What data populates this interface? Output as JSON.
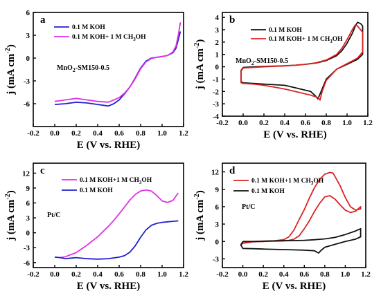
{
  "chart_data": [
    {
      "id": "a",
      "type": "line",
      "letter": "a",
      "annotation": "MnO2-SM150-0.5",
      "annotation_parts": {
        "base": "MnO",
        "sub": "2",
        "rest": "-SM150-0.5"
      },
      "xlabel": "E (V vs. RHE)",
      "ylabel": "j (mA cm⁻²)",
      "ylabel_parts": {
        "base": "j (mA cm",
        "sup": "-2",
        "end": ")"
      },
      "xlim": [
        -0.2,
        1.2
      ],
      "ylim": [
        -9,
        6
      ],
      "xticks": [
        "-0.2",
        "0.0",
        "0.2",
        "0.4",
        "0.6",
        "0.8",
        "1.0",
        "1.2"
      ],
      "yticks": [
        "-6",
        "-3",
        "0",
        "3",
        "6"
      ],
      "legend_position": "top-right",
      "series": [
        {
          "name": "0.1 M KOH",
          "color": "#1f1fcf",
          "x": [
            0.0,
            0.1,
            0.2,
            0.3,
            0.4,
            0.5,
            0.55,
            0.6,
            0.65,
            0.7,
            0.75,
            0.8,
            0.85,
            0.9,
            0.95,
            1.0,
            1.05,
            1.1,
            1.13,
            1.15,
            1.17
          ],
          "y": [
            -6.1,
            -6.0,
            -5.8,
            -5.9,
            -6.1,
            -6.3,
            -6.0,
            -5.5,
            -4.7,
            -3.8,
            -2.6,
            -1.3,
            -0.4,
            0.0,
            0.1,
            0.2,
            0.35,
            0.7,
            1.3,
            2.4,
            3.5
          ]
        },
        {
          "name": "0.1 M KOH+ 1 M CH3OH",
          "color": "#e030e6",
          "x": [
            0.0,
            0.1,
            0.2,
            0.3,
            0.4,
            0.5,
            0.55,
            0.6,
            0.65,
            0.7,
            0.75,
            0.8,
            0.85,
            0.9,
            0.95,
            1.0,
            1.05,
            1.1,
            1.13,
            1.15,
            1.17
          ],
          "y": [
            -5.7,
            -5.5,
            -5.3,
            -5.5,
            -5.7,
            -5.8,
            -5.5,
            -5.2,
            -4.6,
            -3.8,
            -2.7,
            -1.4,
            -0.5,
            -0.05,
            0.1,
            0.2,
            0.35,
            0.8,
            1.6,
            3.0,
            4.7
          ]
        }
      ]
    },
    {
      "id": "b",
      "type": "line",
      "letter": "b",
      "annotation": "MnO2-SM150-0.5",
      "annotation_parts": {
        "base": "MnO",
        "sub": "2",
        "rest": "-SM150-0.5"
      },
      "xlabel": "E (V vs. RHE)",
      "ylabel": "j (mA cm⁻²)",
      "ylabel_parts": {
        "base": "j (mA cm",
        "sup": "-2",
        "end": ")"
      },
      "xlim": [
        -0.2,
        1.2
      ],
      "ylim": [
        -4,
        4.4
      ],
      "xticks": [
        "-0.2",
        "0.0",
        "0.2",
        "0.4",
        "0.6",
        "0.8",
        "1.0",
        "1.2"
      ],
      "yticks": [
        "-4",
        "-3",
        "-2",
        "-1",
        "0",
        "1",
        "2",
        "3",
        "4"
      ],
      "legend_position": "top-left",
      "series": [
        {
          "name": "0.1 M KOH",
          "color": "#111111",
          "x": [
            0.0,
            0.1,
            0.2,
            0.3,
            0.4,
            0.5,
            0.6,
            0.7,
            0.8,
            0.9,
            0.95,
            1.0,
            1.05,
            1.08,
            1.1,
            1.13,
            1.15,
            1.15,
            1.1,
            1.0,
            0.9,
            0.8,
            0.75,
            0.72,
            0.7,
            0.65,
            0.6,
            0.5,
            0.4,
            0.3,
            0.2,
            0.1,
            0.0,
            -0.02,
            -0.02,
            0.0
          ],
          "y": [
            -0.05,
            0.0,
            0.03,
            0.05,
            0.08,
            0.12,
            0.2,
            0.3,
            0.5,
            0.9,
            1.3,
            1.9,
            2.7,
            3.3,
            3.6,
            3.5,
            3.3,
            1.0,
            0.6,
            0.2,
            -0.2,
            -1.0,
            -2.0,
            -2.6,
            -2.4,
            -2.0,
            -1.9,
            -1.7,
            -1.5,
            -1.45,
            -1.4,
            -1.35,
            -1.3,
            -1.2,
            -0.3,
            -0.05
          ]
        },
        {
          "name": "0.1 M KOH+ 1 M CH3OH",
          "color": "#dd2222",
          "x": [
            0.0,
            0.1,
            0.2,
            0.3,
            0.4,
            0.5,
            0.6,
            0.7,
            0.8,
            0.9,
            0.95,
            1.0,
            1.05,
            1.08,
            1.1,
            1.13,
            1.15,
            1.15,
            1.1,
            1.0,
            0.9,
            0.8,
            0.76,
            0.74,
            0.72,
            0.65,
            0.6,
            0.5,
            0.4,
            0.3,
            0.2,
            0.1,
            0.0,
            -0.02,
            -0.02,
            0.0
          ],
          "y": [
            -0.1,
            -0.05,
            0.0,
            0.03,
            0.07,
            0.12,
            0.2,
            0.32,
            0.55,
            1.0,
            1.5,
            2.2,
            3.0,
            3.4,
            3.3,
            3.0,
            2.8,
            1.2,
            0.7,
            0.25,
            -0.2,
            -1.1,
            -2.0,
            -2.7,
            -2.5,
            -2.3,
            -2.2,
            -2.0,
            -1.8,
            -1.65,
            -1.5,
            -1.4,
            -1.35,
            -1.3,
            -0.35,
            -0.1
          ]
        }
      ]
    },
    {
      "id": "c",
      "type": "line",
      "letter": "c",
      "annotation": "Pt/C",
      "xlabel": "E (V vs. RHE)",
      "ylabel": "j (mA cm⁻²)",
      "ylabel_parts": {
        "base": "j (mA cm",
        "sup": "-2",
        "end": ")"
      },
      "xlim": [
        -0.2,
        1.2
      ],
      "ylim": [
        -7,
        14
      ],
      "xticks": [
        "-0.2",
        "0.0",
        "0.2",
        "0.4",
        "0.6",
        "0.8",
        "1.0",
        "1.2"
      ],
      "yticks": [
        "-6",
        "-3",
        "0",
        "3",
        "6",
        "9",
        "12"
      ],
      "legend_position": "top-left",
      "series": [
        {
          "name": "0.1 M KOH+1 M CH3OH",
          "color": "#e030e6",
          "x": [
            0.0,
            0.05,
            0.1,
            0.2,
            0.3,
            0.4,
            0.5,
            0.55,
            0.6,
            0.65,
            0.7,
            0.75,
            0.8,
            0.85,
            0.9,
            0.95,
            1.0,
            1.05,
            1.1,
            1.13,
            1.15
          ],
          "y": [
            -4.9,
            -5.0,
            -4.8,
            -4.0,
            -2.5,
            -0.8,
            1.3,
            2.5,
            3.8,
            5.2,
            6.6,
            7.7,
            8.4,
            8.6,
            8.4,
            7.5,
            6.4,
            6.1,
            6.5,
            7.4,
            8.0
          ]
        },
        {
          "name": "0.1 M KOH",
          "color": "#1f1fcf",
          "x": [
            0.0,
            0.05,
            0.1,
            0.15,
            0.2,
            0.3,
            0.4,
            0.5,
            0.6,
            0.65,
            0.7,
            0.75,
            0.8,
            0.85,
            0.9,
            0.95,
            1.0,
            1.05,
            1.1,
            1.15
          ],
          "y": [
            -4.9,
            -5.0,
            -5.2,
            -5.1,
            -5.0,
            -5.2,
            -5.3,
            -5.2,
            -4.9,
            -4.6,
            -3.9,
            -2.6,
            -0.9,
            0.6,
            1.5,
            1.9,
            2.1,
            2.2,
            2.3,
            2.4
          ]
        }
      ]
    },
    {
      "id": "d",
      "type": "line",
      "letter": "d",
      "annotation": "Pt/C",
      "xlabel": "E (V vs. RHE)",
      "ylabel": "j (mA cm⁻²)",
      "ylabel_parts": {
        "base": "j (mA cm",
        "sup": "-2",
        "end": ")"
      },
      "xlim": [
        -0.2,
        1.2
      ],
      "ylim": [
        -4.5,
        13.5
      ],
      "xticks": [
        "-0.2",
        "0.0",
        "0.2",
        "0.4",
        "0.6",
        "0.8",
        "1.0",
        "1.2"
      ],
      "yticks": [
        "-3",
        "0",
        "3",
        "6",
        "9",
        "12"
      ],
      "legend_position": "top-left",
      "series": [
        {
          "name": "0.1 M KOH+1 M CH3OH",
          "color": "#dd2222",
          "x": [
            0.0,
            0.1,
            0.2,
            0.3,
            0.4,
            0.45,
            0.5,
            0.55,
            0.6,
            0.65,
            0.7,
            0.75,
            0.8,
            0.85,
            0.88,
            0.9,
            0.95,
            1.0,
            1.05,
            1.1,
            1.15,
            1.15,
            1.1,
            1.05,
            1.0,
            0.95,
            0.9,
            0.85,
            0.8,
            0.75,
            0.7,
            0.65,
            0.6,
            0.55,
            0.5,
            0.45,
            0.4,
            0.3,
            0.2,
            0.1,
            0.0,
            -0.02,
            0.0
          ],
          "y": [
            0.0,
            0.0,
            0.05,
            0.1,
            0.3,
            0.8,
            2.0,
            3.8,
            5.5,
            7.5,
            9.3,
            10.7,
            11.6,
            11.9,
            11.8,
            11.2,
            9.6,
            7.6,
            6.0,
            5.4,
            5.6,
            6.0,
            5.2,
            5.0,
            5.4,
            6.3,
            7.3,
            7.9,
            7.7,
            6.6,
            5.2,
            3.6,
            2.2,
            1.0,
            0.4,
            0.2,
            0.1,
            0.05,
            0.0,
            -0.05,
            -0.3,
            -0.6,
            0.0
          ]
        },
        {
          "name": "0.1 M KOH",
          "color": "#111111",
          "x": [
            0.0,
            0.1,
            0.2,
            0.3,
            0.4,
            0.5,
            0.6,
            0.7,
            0.8,
            0.9,
            1.0,
            1.05,
            1.1,
            1.15,
            1.15,
            1.1,
            1.0,
            0.9,
            0.8,
            0.76,
            0.74,
            0.72,
            0.7,
            0.6,
            0.5,
            0.4,
            0.3,
            0.2,
            0.1,
            0.0,
            -0.02,
            0.0
          ],
          "y": [
            0.0,
            0.0,
            0.05,
            0.1,
            0.12,
            0.15,
            0.2,
            0.3,
            0.45,
            0.7,
            1.2,
            1.5,
            1.8,
            2.2,
            0.8,
            0.4,
            0.0,
            -0.5,
            -1.0,
            -1.6,
            -2.0,
            -1.8,
            -1.6,
            -1.5,
            -1.45,
            -1.4,
            -1.35,
            -1.3,
            -1.25,
            -1.2,
            -0.6,
            0.0
          ]
        }
      ]
    }
  ]
}
